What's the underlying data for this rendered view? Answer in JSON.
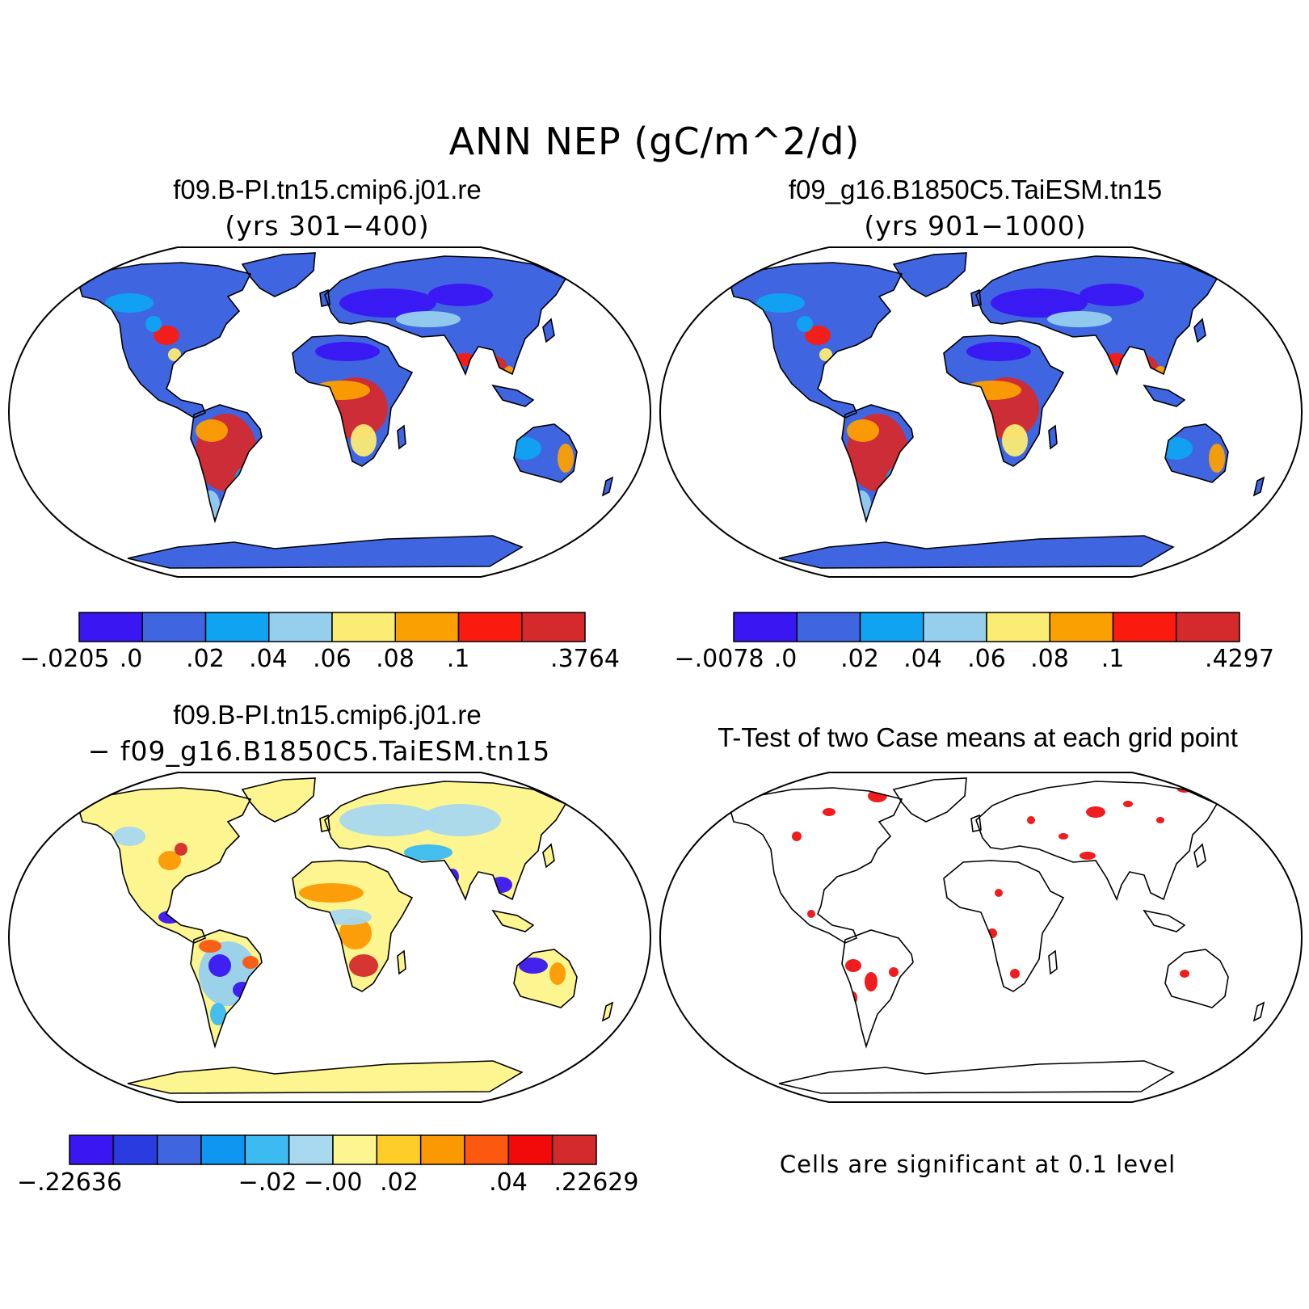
{
  "figure": {
    "title": "ANN NEP (gC/m^2/d)"
  },
  "colors": {
    "ocean": "#ffffff",
    "outline": "#000000",
    "sig_red": "#ee1111"
  },
  "chart_data": [
    {
      "type": "map",
      "panel": "top-left",
      "title": "f09.B-PI.tn15.cmip6.j01.re",
      "subtitle": "(yrs 301−400)",
      "colorbar": {
        "colors": [
          "#3a16f2",
          "#3f66e0",
          "#0fa3f2",
          "#96cfee",
          "#fbec73",
          "#fba002",
          "#fb1a0e",
          "#d52a2c"
        ],
        "labels": [
          "−.0205",
          ".0",
          ".02",
          ".04",
          ".06",
          ".08",
          ".1",
          ".3764"
        ]
      }
    },
    {
      "type": "map",
      "panel": "top-right",
      "title": "f09_g16.B1850C5.TaiESM.tn15",
      "subtitle": "(yrs 901−1000)",
      "colorbar": {
        "colors": [
          "#3a16f2",
          "#3f66e0",
          "#0fa3f2",
          "#96cfee",
          "#fbec73",
          "#fba002",
          "#fb1a0e",
          "#d52a2c"
        ],
        "labels": [
          "−.0078",
          ".0",
          ".02",
          ".04",
          ".06",
          ".08",
          ".1",
          ".4297"
        ]
      }
    },
    {
      "type": "map",
      "panel": "bottom-left",
      "title": "f09.B-PI.tn15.cmip6.j01.re",
      "subtitle": "− f09_g16.B1850C5.TaiESM.tn15",
      "colorbar": {
        "colors": [
          "#3a16f2",
          "#2a3ce0",
          "#3f66e0",
          "#0f96f0",
          "#3cbaf2",
          "#a8d8ef",
          "#fdf58f",
          "#fdcd2a",
          "#fb9902",
          "#fb5810",
          "#f20a0a",
          "#d52a2c"
        ],
        "labels": [
          "−.22636",
          "−.02",
          "−.00",
          ".02",
          ".04",
          ".22629"
        ]
      }
    },
    {
      "type": "map",
      "panel": "bottom-right",
      "title": "T-Test of two Case means at each grid point",
      "note": "Cells are significant at 0.1 level"
    }
  ]
}
